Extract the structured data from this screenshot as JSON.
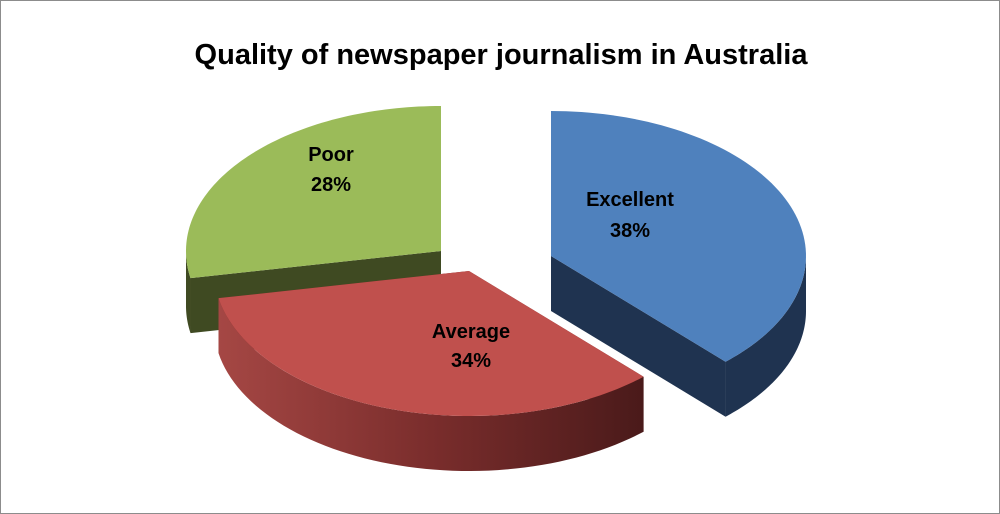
{
  "chart_data": {
    "type": "pie",
    "style": "3d-exploded",
    "title": "Quality of newspaper journalism in Australia",
    "categories": [
      "Excellent",
      "Average",
      "Poor"
    ],
    "values": [
      38,
      34,
      28
    ],
    "labels": [
      "Excellent\n38%",
      "Average\n34%",
      "Poor\n28%"
    ],
    "slices": [
      {
        "name": "Excellent",
        "value": 38,
        "label": "Excellent",
        "pct": "38%",
        "color": "#4f81bd",
        "side_color": "#1f3350"
      },
      {
        "name": "Average",
        "value": 34,
        "label": "Average",
        "pct": "34%",
        "color": "#c0504d",
        "side_color": "#6e2524"
      },
      {
        "name": "Poor",
        "value": 28,
        "label": "Poor",
        "pct": "28%",
        "color": "#9bbb59",
        "side_color": "#3f4a22"
      }
    ],
    "legend": "none"
  }
}
